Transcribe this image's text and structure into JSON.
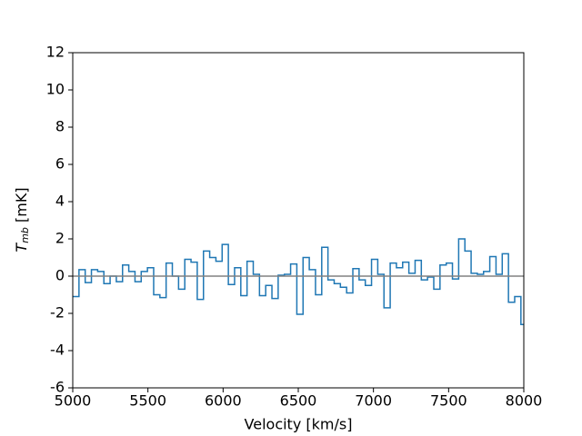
{
  "chart_data": {
    "type": "step",
    "xlabel": "Velocity [km/s]",
    "ylabel": {
      "symbol": "T",
      "subscript": "mb",
      "unit": "[mK]"
    },
    "xlim": [
      5000,
      8000
    ],
    "xticks": [
      5000,
      5500,
      6000,
      6500,
      7000,
      7500,
      8000
    ],
    "ylim": [
      -6,
      12
    ],
    "yticks": [
      -6,
      -4,
      -2,
      0,
      2,
      4,
      6,
      8,
      10,
      12
    ],
    "hline": {
      "value": 0,
      "color": "#808080"
    },
    "series": [
      {
        "color": "#1f77b4",
        "x": [
          5000,
          5041.4,
          5082.8,
          5124.2,
          5165.6,
          5207,
          5248.4,
          5289.8,
          5331.2,
          5372.6,
          5414,
          5455.4,
          5496.8,
          5538.2,
          5579.6,
          5621,
          5662.4,
          5703.8,
          5745.2,
          5786.6,
          5828,
          5869.4,
          5910.8,
          5952.2,
          5993.6,
          6035,
          6076.4,
          6117.8,
          6159.2,
          6200.6,
          6242,
          6283.4,
          6324.8,
          6366.2,
          6407.6,
          6449,
          6490.4,
          6531.8,
          6573.2,
          6614.6,
          6656,
          6697.4,
          6738.8,
          6780.2,
          6821.6,
          6863,
          6904.4,
          6945.8,
          6987.2,
          7028.6,
          7070,
          7111.4,
          7152.8,
          7194.2,
          7235.6,
          7277,
          7318.4,
          7359.8,
          7401.2,
          7442.6,
          7484,
          7525.4,
          7566.8,
          7608.2,
          7649.6,
          7691,
          7732.4,
          7773.8,
          7815.2,
          7856.6,
          7898,
          7939.4,
          7980.8
        ],
        "values": [
          -1.1,
          0.35,
          -0.35,
          0.35,
          0.25,
          -0.4,
          0.0,
          -0.3,
          0.6,
          0.25,
          -0.3,
          0.25,
          0.45,
          -1.0,
          -1.15,
          0.7,
          0.0,
          -0.7,
          0.9,
          0.75,
          -1.25,
          1.35,
          1.0,
          0.8,
          1.7,
          -0.45,
          0.45,
          -1.05,
          0.8,
          0.1,
          -1.05,
          -0.5,
          -1.2,
          0.05,
          0.1,
          0.65,
          -2.05,
          1.0,
          0.35,
          -1.0,
          1.55,
          -0.2,
          -0.4,
          -0.6,
          -0.9,
          0.4,
          -0.2,
          -0.5,
          0.9,
          0.1,
          -1.7,
          0.7,
          0.45,
          0.75,
          0.15,
          0.85,
          -0.2,
          -0.05,
          -0.7,
          0.6,
          0.7,
          -0.15,
          2.0,
          1.35,
          0.15,
          0.1,
          0.25,
          1.05,
          0.1,
          1.2,
          -1.4,
          -1.1,
          -2.6
        ]
      }
    ]
  }
}
